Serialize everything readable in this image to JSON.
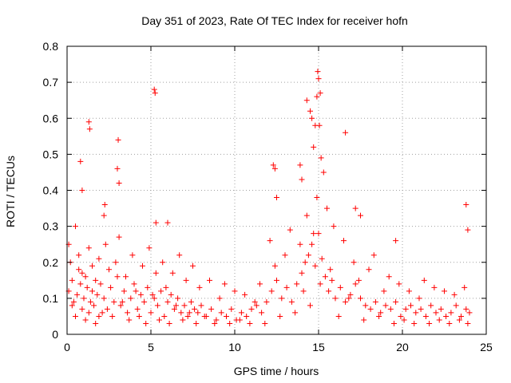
{
  "chart_data": {
    "type": "scatter",
    "title": "Day 351 of 2023, Rate Of TEC Index for receiver hofn",
    "xlabel": "GPS time / hours",
    "ylabel": "ROTI / TECUs",
    "xlim": [
      0,
      25
    ],
    "ylim": [
      0,
      0.8
    ],
    "xticks": [
      0,
      5,
      10,
      15,
      20,
      25
    ],
    "yticks": [
      0,
      0.1,
      0.2,
      0.3,
      0.4,
      0.5,
      0.6,
      0.7,
      0.8
    ],
    "grid": true,
    "marker": "+",
    "color": "#ff0000",
    "series": [
      {
        "x": [
          0.1,
          0.2,
          0.3,
          0.4,
          0.5,
          0.6,
          0.7,
          0.8,
          0.9,
          1.0,
          1.1,
          1.2,
          1.3,
          1.4,
          1.5,
          1.6,
          1.7,
          1.8,
          1.9,
          2.0,
          2.2,
          2.4,
          2.6,
          2.8,
          3.0,
          3.2,
          3.4,
          3.6,
          3.8,
          4.0,
          4.2,
          4.4,
          4.6,
          4.8,
          5.0,
          5.2,
          5.4,
          5.6,
          5.8,
          6.0,
          6.2,
          6.4,
          6.6,
          6.8,
          7.0,
          7.2,
          7.4,
          7.6,
          7.8,
          8.0,
          8.3,
          8.6,
          8.9,
          9.2,
          9.5,
          9.8,
          10.1,
          10.4,
          10.7,
          11.0,
          11.3,
          11.6,
          11.9,
          12.2,
          12.5,
          12.8,
          13.1,
          13.4,
          13.7,
          14.0,
          14.2,
          14.4,
          14.6,
          14.8,
          15.0,
          15.2,
          15.4,
          15.6,
          15.8,
          16.0,
          16.3,
          16.6,
          16.9,
          17.2,
          17.5,
          17.8,
          18.1,
          18.4,
          18.7,
          19.0,
          19.3,
          19.6,
          19.9,
          20.2,
          20.5,
          20.8,
          21.1,
          21.4,
          21.7,
          22.0,
          22.3,
          22.6,
          22.9,
          23.2,
          23.5,
          23.8,
          24.0,
          0.1,
          0.3,
          0.5,
          0.7,
          0.9,
          1.1,
          1.3,
          1.5,
          1.7,
          1.9,
          2.1,
          2.3,
          2.5,
          2.7,
          2.9,
          3.1,
          3.3,
          3.5,
          3.7,
          3.9,
          4.1,
          4.3,
          4.5,
          4.7,
          4.9,
          5.1,
          5.3,
          5.5,
          5.7,
          5.9,
          6.1,
          6.3,
          6.5,
          6.7,
          6.9,
          7.1,
          7.3,
          7.5,
          7.7,
          7.9,
          8.2,
          8.5,
          8.8,
          9.1,
          9.4,
          9.7,
          10.0,
          10.3,
          10.6,
          10.9,
          11.2,
          11.5,
          11.8,
          12.1,
          12.4,
          12.7,
          13.0,
          13.3,
          13.6,
          13.9,
          14.1,
          14.3,
          14.5,
          14.7,
          14.9,
          15.1,
          15.3,
          15.5,
          15.7,
          15.9,
          16.2,
          16.5,
          16.8,
          17.1,
          17.4,
          17.7,
          18.0,
          18.3,
          18.6,
          18.9,
          19.2,
          19.5,
          19.8,
          20.1,
          20.4,
          20.7,
          21.0,
          21.3,
          21.6,
          21.9,
          22.2,
          22.5,
          22.8,
          23.1,
          23.4,
          23.7,
          23.9,
          0.8,
          0.9,
          1.3,
          1.35,
          2.2,
          2.25,
          3.0,
          3.05,
          3.1,
          5.2,
          5.25,
          5.3,
          6.0,
          12.3,
          12.4,
          12.5,
          13.9,
          14.0,
          14.3,
          14.5,
          14.6,
          14.7,
          14.8,
          14.9,
          14.95,
          15.0,
          15.05,
          15.1,
          15.15,
          16.6,
          17.2,
          17.5,
          19.6,
          23.8,
          23.9
        ],
        "y": [
          0.12,
          0.2,
          0.15,
          0.09,
          0.05,
          0.11,
          0.18,
          0.14,
          0.07,
          0.1,
          0.16,
          0.13,
          0.06,
          0.09,
          0.12,
          0.08,
          0.15,
          0.11,
          0.05,
          0.14,
          0.1,
          0.07,
          0.13,
          0.09,
          0.16,
          0.08,
          0.12,
          0.06,
          0.1,
          0.14,
          0.07,
          0.11,
          0.09,
          0.13,
          0.06,
          0.1,
          0.08,
          0.12,
          0.05,
          0.09,
          0.11,
          0.07,
          0.1,
          0.06,
          0.08,
          0.05,
          0.09,
          0.07,
          0.06,
          0.08,
          0.05,
          0.07,
          0.04,
          0.06,
          0.05,
          0.07,
          0.04,
          0.06,
          0.05,
          0.07,
          0.08,
          0.06,
          0.09,
          0.12,
          0.15,
          0.1,
          0.13,
          0.09,
          0.14,
          0.17,
          0.2,
          0.22,
          0.25,
          0.19,
          0.28,
          0.21,
          0.16,
          0.12,
          0.15,
          0.1,
          0.13,
          0.09,
          0.11,
          0.14,
          0.1,
          0.08,
          0.07,
          0.09,
          0.06,
          0.08,
          0.07,
          0.09,
          0.05,
          0.07,
          0.08,
          0.06,
          0.07,
          0.05,
          0.08,
          0.06,
          0.07,
          0.05,
          0.06,
          0.08,
          0.05,
          0.07,
          0.06,
          0.25,
          0.08,
          0.3,
          0.22,
          0.17,
          0.04,
          0.24,
          0.19,
          0.03,
          0.21,
          0.06,
          0.25,
          0.18,
          0.05,
          0.2,
          0.27,
          0.09,
          0.16,
          0.04,
          0.22,
          0.12,
          0.05,
          0.19,
          0.03,
          0.24,
          0.11,
          0.17,
          0.04,
          0.2,
          0.13,
          0.03,
          0.17,
          0.08,
          0.22,
          0.04,
          0.15,
          0.06,
          0.19,
          0.03,
          0.13,
          0.05,
          0.15,
          0.03,
          0.1,
          0.14,
          0.03,
          0.12,
          0.04,
          0.11,
          0.03,
          0.09,
          0.14,
          0.03,
          0.26,
          0.19,
          0.05,
          0.22,
          0.29,
          0.06,
          0.25,
          0.12,
          0.33,
          0.08,
          0.28,
          0.38,
          0.14,
          0.45,
          0.35,
          0.18,
          0.3,
          0.05,
          0.26,
          0.1,
          0.2,
          0.15,
          0.04,
          0.18,
          0.22,
          0.05,
          0.12,
          0.16,
          0.03,
          0.14,
          0.04,
          0.12,
          0.03,
          0.1,
          0.15,
          0.03,
          0.13,
          0.04,
          0.12,
          0.03,
          0.11,
          0.04,
          0.13,
          0.03,
          0.48,
          0.4,
          0.59,
          0.57,
          0.33,
          0.36,
          0.46,
          0.54,
          0.42,
          0.68,
          0.67,
          0.31,
          0.31,
          0.47,
          0.46,
          0.38,
          0.47,
          0.43,
          0.65,
          0.62,
          0.6,
          0.52,
          0.58,
          0.66,
          0.73,
          0.71,
          0.58,
          0.67,
          0.49,
          0.56,
          0.35,
          0.33,
          0.26,
          0.36,
          0.29
        ]
      }
    ]
  }
}
